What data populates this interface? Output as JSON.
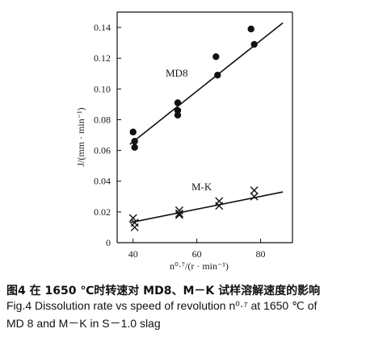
{
  "chart_data": {
    "type": "scatter",
    "ylabel": "J/(mm · min⁻¹)",
    "xlabel": "n⁰·⁷/(r · min⁻¹)",
    "xlim": [
      35,
      90
    ],
    "ylim": [
      0,
      0.15
    ],
    "xticks": [
      "40",
      "60",
      "80"
    ],
    "xtick_values": [
      40,
      60,
      80
    ],
    "yticks": [
      "0",
      "0.02",
      "0.04",
      "0.06",
      "0.08",
      "0.10",
      "0.12",
      "0.14"
    ],
    "ytick_values": [
      0,
      0.02,
      0.04,
      0.06,
      0.08,
      0.1,
      0.12,
      0.14
    ],
    "series": [
      {
        "name": "MD8",
        "marker": "circle",
        "points": [
          [
            40,
            0.072
          ],
          [
            40.5,
            0.066
          ],
          [
            40.5,
            0.062
          ],
          [
            54,
            0.091
          ],
          [
            54,
            0.086
          ],
          [
            54,
            0.083
          ],
          [
            66,
            0.121
          ],
          [
            66.5,
            0.109
          ],
          [
            77,
            0.139
          ],
          [
            78,
            0.129
          ]
        ],
        "fit": [
          [
            39,
            0.064
          ],
          [
            87,
            0.143
          ]
        ]
      },
      {
        "name": "M-K",
        "marker": "x",
        "points": [
          [
            40,
            0.016
          ],
          [
            40.5,
            0.013
          ],
          [
            40.5,
            0.01
          ],
          [
            54.5,
            0.021
          ],
          [
            54.5,
            0.019
          ],
          [
            54.5,
            0.018
          ],
          [
            67,
            0.027
          ],
          [
            67,
            0.024
          ],
          [
            78,
            0.034
          ],
          [
            78,
            0.03
          ]
        ],
        "fit": [
          [
            39,
            0.013
          ],
          [
            87,
            0.033
          ]
        ]
      }
    ]
  },
  "caption": {
    "line1": "图4  在 1650 ℃时转速对 MD8、M－K 试样溶解速度的影响",
    "line2": "Fig.4 Dissolution rate vs speed of revolution n⁰·⁷ at 1650 ℃ of",
    "line3": "MD 8 and M－K in S－1.0 slag"
  }
}
